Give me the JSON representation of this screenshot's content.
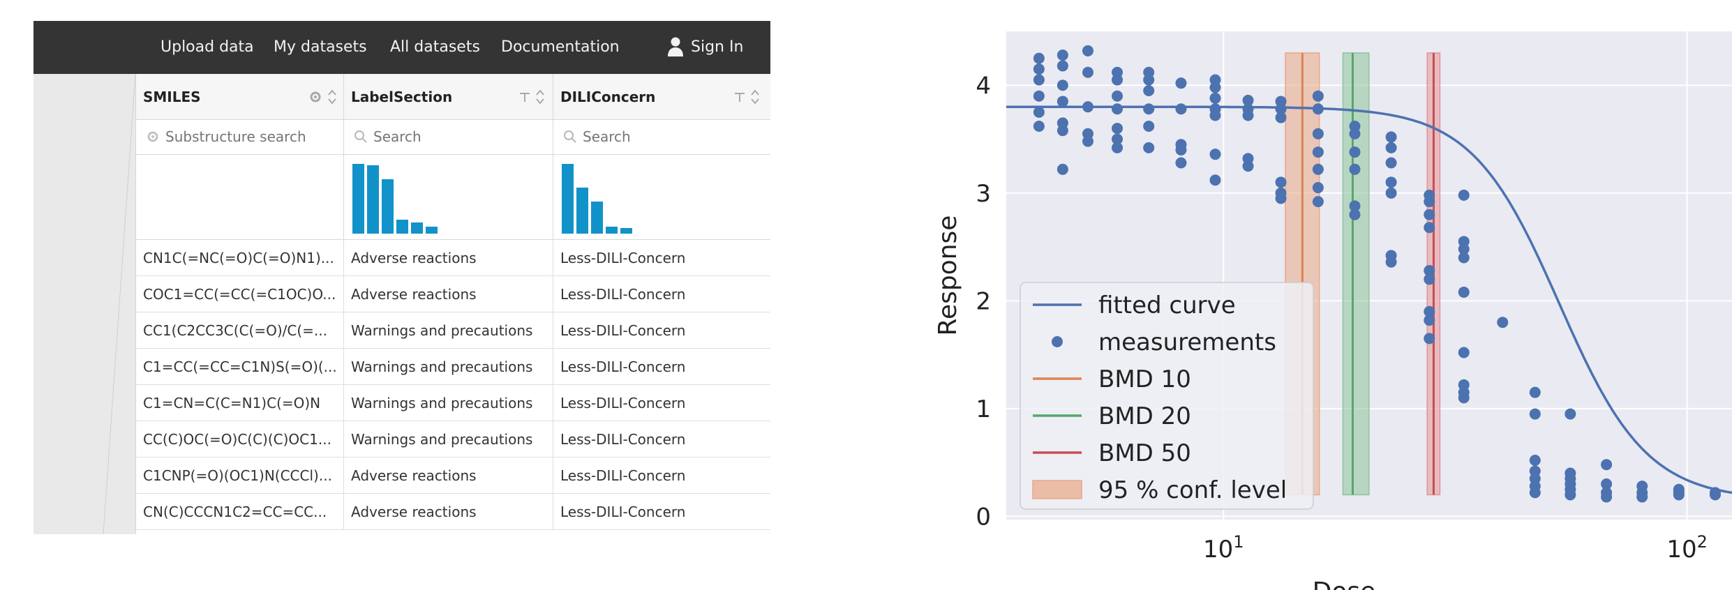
{
  "nav": {
    "items": [
      "Upload data",
      "My datasets",
      "All datasets",
      "Documentation"
    ],
    "signin": "Sign In"
  },
  "table": {
    "columns": [
      {
        "title": "SMILES",
        "placeholder": "Substructure search"
      },
      {
        "title": "LabelSection",
        "placeholder": "Search"
      },
      {
        "title": "DILIConcern",
        "placeholder": "Search"
      }
    ],
    "histograms": {
      "LabelSection": [
        1.0,
        0.98,
        0.78,
        0.2,
        0.16,
        0.1
      ],
      "DILIConcern": [
        1.0,
        0.66,
        0.46,
        0.1,
        0.08
      ]
    },
    "rows": [
      [
        "CN1C(=NC(=O)C(=O)N1)...",
        "Adverse reactions",
        "Less-DILI-Concern"
      ],
      [
        "COC1=CC(=CC(=C1OC)O...",
        "Adverse reactions",
        "Less-DILI-Concern"
      ],
      [
        "CC1(C2CC3C(C(=O)/C(=...",
        "Warnings and precautions",
        "Less-DILI-Concern"
      ],
      [
        "C1=CC(=CC=C1N)S(=O)(...",
        "Warnings and precautions",
        "Less-DILI-Concern"
      ],
      [
        "C1=CN=C(C=N1)C(=O)N",
        "Warnings and precautions",
        "Less-DILI-Concern"
      ],
      [
        "CC(C)OC(=O)C(C)(C)OC1...",
        "Warnings and precautions",
        "Less-DILI-Concern"
      ],
      [
        "C1CNP(=O)(OC1)N(CCCl)...",
        "Adverse reactions",
        "Less-DILI-Concern"
      ],
      [
        "CN(C)CCCN1C2=CC=CC...",
        "Adverse reactions",
        "Less-DILI-Concern"
      ]
    ]
  },
  "chart_data": {
    "type": "scatter",
    "xlabel": "Dose",
    "ylabel": "Response",
    "xscale": "log",
    "xlim": [
      3.4,
      125
    ],
    "ylim": [
      -0.03,
      4.5
    ],
    "yticks": [
      0,
      1,
      2,
      3,
      4
    ],
    "xticks": [
      {
        "value": 10,
        "label": "10",
        "exp": "1"
      },
      {
        "value": 100,
        "label": "10",
        "exp": "2"
      }
    ],
    "grid": true,
    "legend_position": "lower-left",
    "legend": [
      "fitted curve",
      "measurements",
      "BMD 10",
      "BMD 20",
      "BMD 50",
      "95 % conf. level"
    ],
    "fitted_curve": {
      "top": 3.8,
      "bottom": 0.15,
      "ec50": 53,
      "hill": 4.6
    },
    "measurements": [
      {
        "x": 4.0,
        "y": [
          4.25,
          4.15,
          4.05,
          3.9,
          3.75,
          3.62
        ]
      },
      {
        "x": 4.5,
        "y": [
          4.28,
          4.18,
          4.0,
          3.85,
          3.65,
          3.58,
          3.22
        ]
      },
      {
        "x": 5.1,
        "y": [
          4.32,
          4.12,
          3.8,
          3.55,
          3.48
        ]
      },
      {
        "x": 5.9,
        "y": [
          4.12,
          4.05,
          3.9,
          3.78,
          3.6,
          3.5,
          3.42
        ]
      },
      {
        "x": 6.9,
        "y": [
          4.12,
          4.05,
          3.95,
          3.78,
          3.62,
          3.42
        ]
      },
      {
        "x": 8.1,
        "y": [
          4.02,
          3.78,
          3.45,
          3.4,
          3.28
        ]
      },
      {
        "x": 9.6,
        "y": [
          4.05,
          3.98,
          3.88,
          3.78,
          3.72,
          3.36,
          3.12
        ]
      },
      {
        "x": 11.3,
        "y": [
          3.86,
          3.78,
          3.72,
          3.32,
          3.25
        ]
      },
      {
        "x": 13.3,
        "y": [
          3.85,
          3.78,
          3.7,
          3.1,
          3.0,
          2.95
        ]
      },
      {
        "x": 16.0,
        "y": [
          3.9,
          3.78,
          3.55,
          3.38,
          3.22,
          3.05,
          2.92
        ]
      },
      {
        "x": 19.2,
        "y": [
          3.62,
          3.55,
          3.38,
          3.22,
          2.88,
          2.8
        ]
      },
      {
        "x": 23.0,
        "y": [
          3.52,
          3.42,
          3.28,
          3.1,
          3.0,
          2.42,
          2.36
        ]
      },
      {
        "x": 27.8,
        "y": [
          2.98,
          2.92,
          2.8,
          2.68,
          2.28,
          2.2,
          1.9,
          1.82,
          1.65
        ]
      },
      {
        "x": 33.0,
        "y": [
          2.98,
          2.55,
          2.48,
          2.4,
          2.08,
          1.52,
          1.22,
          1.15,
          1.1
        ]
      },
      {
        "x": 40.0,
        "y": [
          1.8
        ]
      },
      {
        "x": 47.0,
        "y": [
          1.15,
          0.95,
          0.52,
          0.42,
          0.35,
          0.28,
          0.22
        ]
      },
      {
        "x": 56.0,
        "y": [
          0.95,
          0.4,
          0.35,
          0.3,
          0.25,
          0.2
        ]
      },
      {
        "x": 67.0,
        "y": [
          0.48,
          0.3,
          0.22,
          0.18
        ]
      },
      {
        "x": 80.0,
        "y": [
          0.28,
          0.22,
          0.18
        ]
      },
      {
        "x": 96.0,
        "y": [
          0.25,
          0.22,
          0.2
        ]
      },
      {
        "x": 115.0,
        "y": [
          0.22,
          0.2
        ]
      }
    ],
    "bmd": [
      {
        "name": "BMD 10",
        "value": 14.8,
        "ci": [
          13.6,
          16.1
        ],
        "color": "#dd8452",
        "band": "#e9a787"
      },
      {
        "name": "BMD 20",
        "value": 19.0,
        "ci": [
          18.1,
          20.6
        ],
        "color": "#55a868",
        "band": "#8cc49a"
      },
      {
        "name": "BMD 50",
        "value": 28.4,
        "ci": [
          27.5,
          29.3
        ],
        "color": "#c44e52",
        "band": "#e39498"
      }
    ],
    "colors": {
      "points": "#4c72b0",
      "curve": "#4c72b0",
      "axes_bg": "#eaeaf2"
    }
  }
}
